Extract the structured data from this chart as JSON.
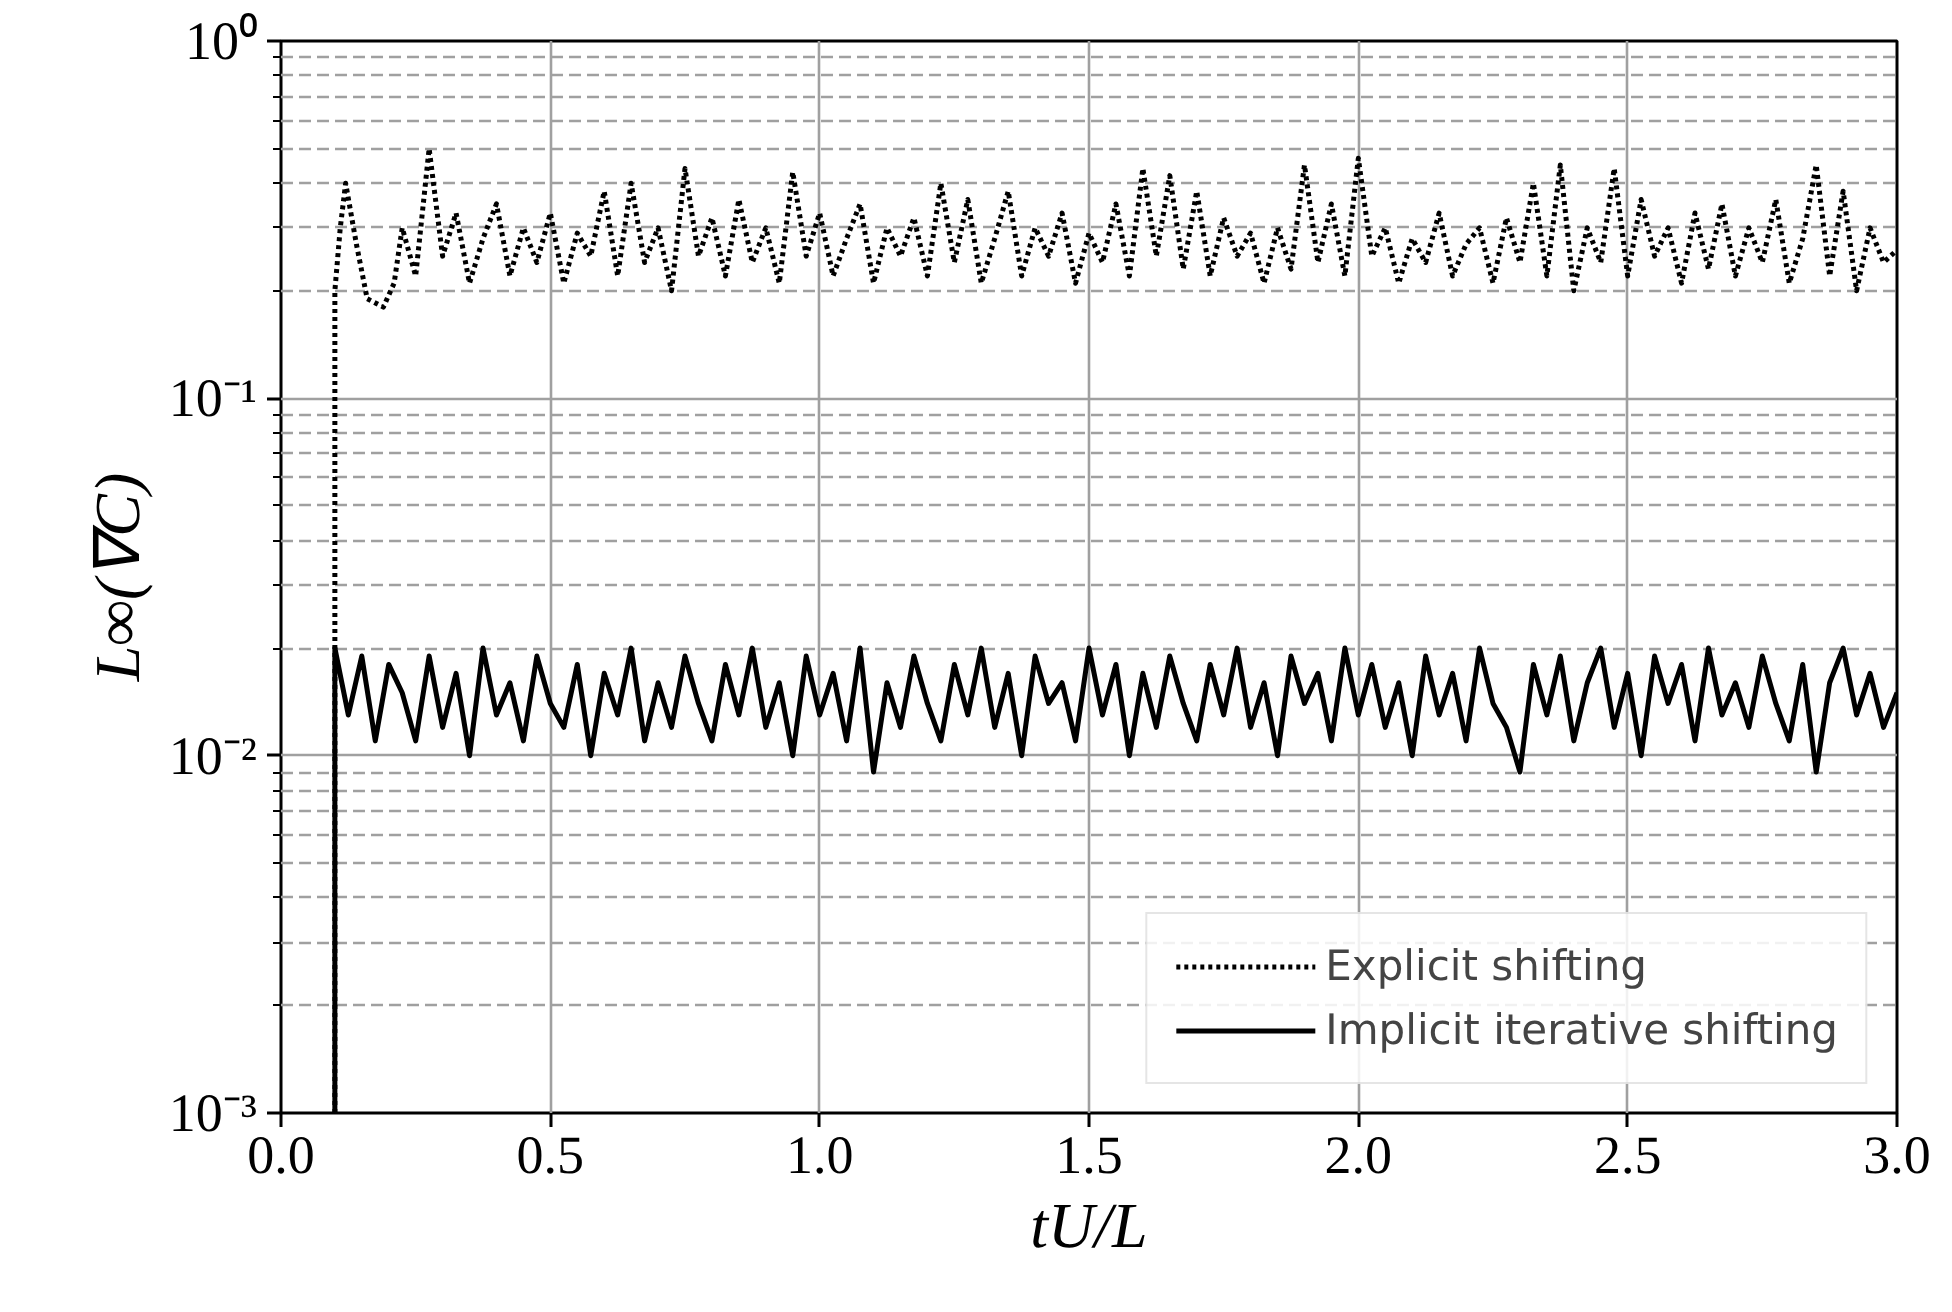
{
  "chart_data": {
    "type": "line",
    "xlabel": "tU/L",
    "ylabel": "L∞(∇C)",
    "log": "y",
    "grid": true,
    "legend": "bottom right",
    "xlim": [
      0.0,
      3.0
    ],
    "xticks": [
      {
        "value": 0,
        "label": "0.0"
      },
      0.5,
      {
        "value": 1,
        "label": "1.0"
      },
      1.5,
      {
        "value": 2,
        "label": "2.0"
      },
      2.5,
      {
        "value": 3,
        "label": "3.0"
      }
    ],
    "ylim": [
      0.001,
      1
    ],
    "yticks": [
      {
        "value": 0.001,
        "label": "10⁻³"
      },
      {
        "value": 0.01,
        "label": "10⁻²"
      },
      {
        "value": 0.1,
        "label": "10⁻¹"
      },
      {
        "value": 1,
        "label": "10⁰"
      }
    ],
    "series": [
      {
        "name": "Explicit shifting",
        "color": "#000000",
        "line_style": "dotted",
        "x": [
          0.1,
          0.1,
          0.11,
          0.12,
          0.14,
          0.16,
          0.19,
          0.21,
          0.225,
          0.25,
          0.275,
          0.3,
          0.325,
          0.35,
          0.375,
          0.4,
          0.425,
          0.45,
          0.475,
          0.5,
          0.525,
          0.55,
          0.575,
          0.6,
          0.625,
          0.65,
          0.675,
          0.7,
          0.725,
          0.75,
          0.775,
          0.8,
          0.825,
          0.85,
          0.875,
          0.9,
          0.925,
          0.95,
          0.975,
          1.0,
          1.025,
          1.05,
          1.075,
          1.1,
          1.125,
          1.15,
          1.175,
          1.2,
          1.225,
          1.25,
          1.275,
          1.3,
          1.325,
          1.35,
          1.375,
          1.4,
          1.425,
          1.45,
          1.475,
          1.5,
          1.525,
          1.55,
          1.575,
          1.6,
          1.625,
          1.65,
          1.675,
          1.7,
          1.725,
          1.75,
          1.775,
          1.8,
          1.825,
          1.85,
          1.875,
          1.9,
          1.925,
          1.95,
          1.975,
          2.0,
          2.025,
          2.05,
          2.075,
          2.1,
          2.125,
          2.15,
          2.175,
          2.2,
          2.225,
          2.25,
          2.275,
          2.3,
          2.325,
          2.35,
          2.375,
          2.4,
          2.425,
          2.45,
          2.475,
          2.5,
          2.525,
          2.55,
          2.575,
          2.6,
          2.625,
          2.65,
          2.675,
          2.7,
          2.725,
          2.75,
          2.775,
          2.8,
          2.825,
          2.85,
          2.875,
          2.9,
          2.925,
          2.95,
          2.975,
          3.0
        ],
        "values": [
          0.001,
          0.2,
          0.3,
          0.4,
          0.27,
          0.19,
          0.18,
          0.21,
          0.3,
          0.22,
          0.5,
          0.25,
          0.33,
          0.21,
          0.28,
          0.35,
          0.22,
          0.3,
          0.24,
          0.33,
          0.21,
          0.29,
          0.25,
          0.38,
          0.22,
          0.4,
          0.24,
          0.3,
          0.2,
          0.44,
          0.25,
          0.32,
          0.22,
          0.36,
          0.24,
          0.3,
          0.21,
          0.43,
          0.25,
          0.33,
          0.22,
          0.28,
          0.35,
          0.21,
          0.3,
          0.25,
          0.32,
          0.22,
          0.4,
          0.24,
          0.36,
          0.21,
          0.28,
          0.38,
          0.22,
          0.3,
          0.25,
          0.33,
          0.21,
          0.29,
          0.24,
          0.35,
          0.22,
          0.44,
          0.25,
          0.42,
          0.23,
          0.38,
          0.22,
          0.32,
          0.25,
          0.29,
          0.21,
          0.3,
          0.23,
          0.45,
          0.24,
          0.35,
          0.22,
          0.47,
          0.25,
          0.3,
          0.21,
          0.28,
          0.24,
          0.33,
          0.22,
          0.27,
          0.3,
          0.21,
          0.32,
          0.24,
          0.4,
          0.22,
          0.45,
          0.2,
          0.3,
          0.24,
          0.44,
          0.22,
          0.36,
          0.25,
          0.3,
          0.21,
          0.33,
          0.23,
          0.35,
          0.22,
          0.3,
          0.24,
          0.36,
          0.21,
          0.28,
          0.45,
          0.22,
          0.38,
          0.2,
          0.3,
          0.24,
          0.26
        ]
      },
      {
        "name": "Implicit iterative shifting",
        "color": "#000000",
        "line_style": "solid",
        "x": [
          0.1,
          0.1,
          0.125,
          0.15,
          0.175,
          0.2,
          0.225,
          0.25,
          0.275,
          0.3,
          0.325,
          0.35,
          0.375,
          0.4,
          0.425,
          0.45,
          0.475,
          0.5,
          0.525,
          0.55,
          0.575,
          0.6,
          0.625,
          0.65,
          0.675,
          0.7,
          0.725,
          0.75,
          0.775,
          0.8,
          0.825,
          0.85,
          0.875,
          0.9,
          0.925,
          0.95,
          0.975,
          1.0,
          1.025,
          1.05,
          1.075,
          1.1,
          1.125,
          1.15,
          1.175,
          1.2,
          1.225,
          1.25,
          1.275,
          1.3,
          1.325,
          1.35,
          1.375,
          1.4,
          1.425,
          1.45,
          1.475,
          1.5,
          1.525,
          1.55,
          1.575,
          1.6,
          1.625,
          1.65,
          1.675,
          1.7,
          1.725,
          1.75,
          1.775,
          1.8,
          1.825,
          1.85,
          1.875,
          1.9,
          1.925,
          1.95,
          1.975,
          2.0,
          2.025,
          2.05,
          2.075,
          2.1,
          2.125,
          2.15,
          2.175,
          2.2,
          2.225,
          2.25,
          2.275,
          2.3,
          2.325,
          2.35,
          2.375,
          2.4,
          2.425,
          2.45,
          2.475,
          2.5,
          2.525,
          2.55,
          2.575,
          2.6,
          2.625,
          2.65,
          2.675,
          2.7,
          2.725,
          2.75,
          2.775,
          2.8,
          2.825,
          2.85,
          2.875,
          2.9,
          2.925,
          2.95,
          2.975,
          3.0
        ],
        "values": [
          0.001,
          0.02,
          0.013,
          0.019,
          0.011,
          0.018,
          0.015,
          0.011,
          0.019,
          0.012,
          0.017,
          0.01,
          0.02,
          0.013,
          0.016,
          0.011,
          0.019,
          0.014,
          0.012,
          0.018,
          0.01,
          0.017,
          0.013,
          0.02,
          0.011,
          0.016,
          0.012,
          0.019,
          0.014,
          0.011,
          0.018,
          0.013,
          0.02,
          0.012,
          0.016,
          0.01,
          0.019,
          0.013,
          0.017,
          0.011,
          0.02,
          0.009,
          0.016,
          0.012,
          0.019,
          0.014,
          0.011,
          0.018,
          0.013,
          0.02,
          0.012,
          0.017,
          0.01,
          0.019,
          0.014,
          0.016,
          0.011,
          0.02,
          0.013,
          0.018,
          0.01,
          0.017,
          0.012,
          0.019,
          0.014,
          0.011,
          0.018,
          0.013,
          0.02,
          0.012,
          0.016,
          0.01,
          0.019,
          0.014,
          0.017,
          0.011,
          0.02,
          0.013,
          0.018,
          0.012,
          0.016,
          0.01,
          0.019,
          0.013,
          0.017,
          0.011,
          0.02,
          0.014,
          0.012,
          0.009,
          0.018,
          0.013,
          0.019,
          0.011,
          0.016,
          0.02,
          0.012,
          0.017,
          0.01,
          0.019,
          0.014,
          0.018,
          0.011,
          0.02,
          0.013,
          0.016,
          0.012,
          0.019,
          0.014,
          0.011,
          0.018,
          0.009,
          0.016,
          0.02,
          0.013,
          0.017,
          0.012,
          0.015
        ]
      }
    ]
  }
}
